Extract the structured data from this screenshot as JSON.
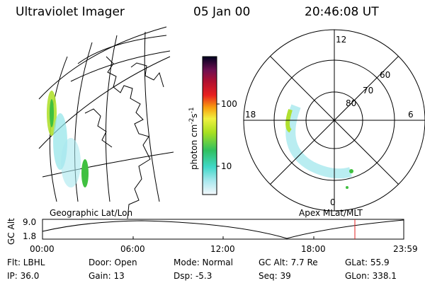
{
  "header": {
    "title": "Ultraviolet Imager",
    "date": "05 Jan 00",
    "time": "20:46:08 UT"
  },
  "colorbar": {
    "label": "photon cm",
    "exp1": "-2",
    "unit2": "s",
    "exp2": "-1",
    "ticks": [
      "100",
      "10"
    ]
  },
  "polar": {
    "mlt_labels": [
      "12",
      "18",
      "6",
      "0"
    ],
    "lat_labels": [
      "60",
      "70",
      "80"
    ]
  },
  "panel_labels": {
    "geo": "Geographic Lat/Lon",
    "apex": "Apex MLat/MLT"
  },
  "altitude_plot": {
    "axis_title": "GC Alt",
    "yticks": [
      "9.0",
      "1.8"
    ],
    "xticks": [
      "00:00",
      "06:00",
      "12:00",
      "18:00",
      "23:59"
    ]
  },
  "footer": {
    "rows": [
      [
        "Flt: LBHL",
        "Door: Open",
        "Mode: Normal",
        "GC Alt: 7.7 Re",
        "GLat: 55.9"
      ],
      [
        "IP: 36.0",
        "Gain: 13",
        "Dsp: -5.3",
        "Seq: 39",
        "GLon: 338.1"
      ]
    ]
  }
}
